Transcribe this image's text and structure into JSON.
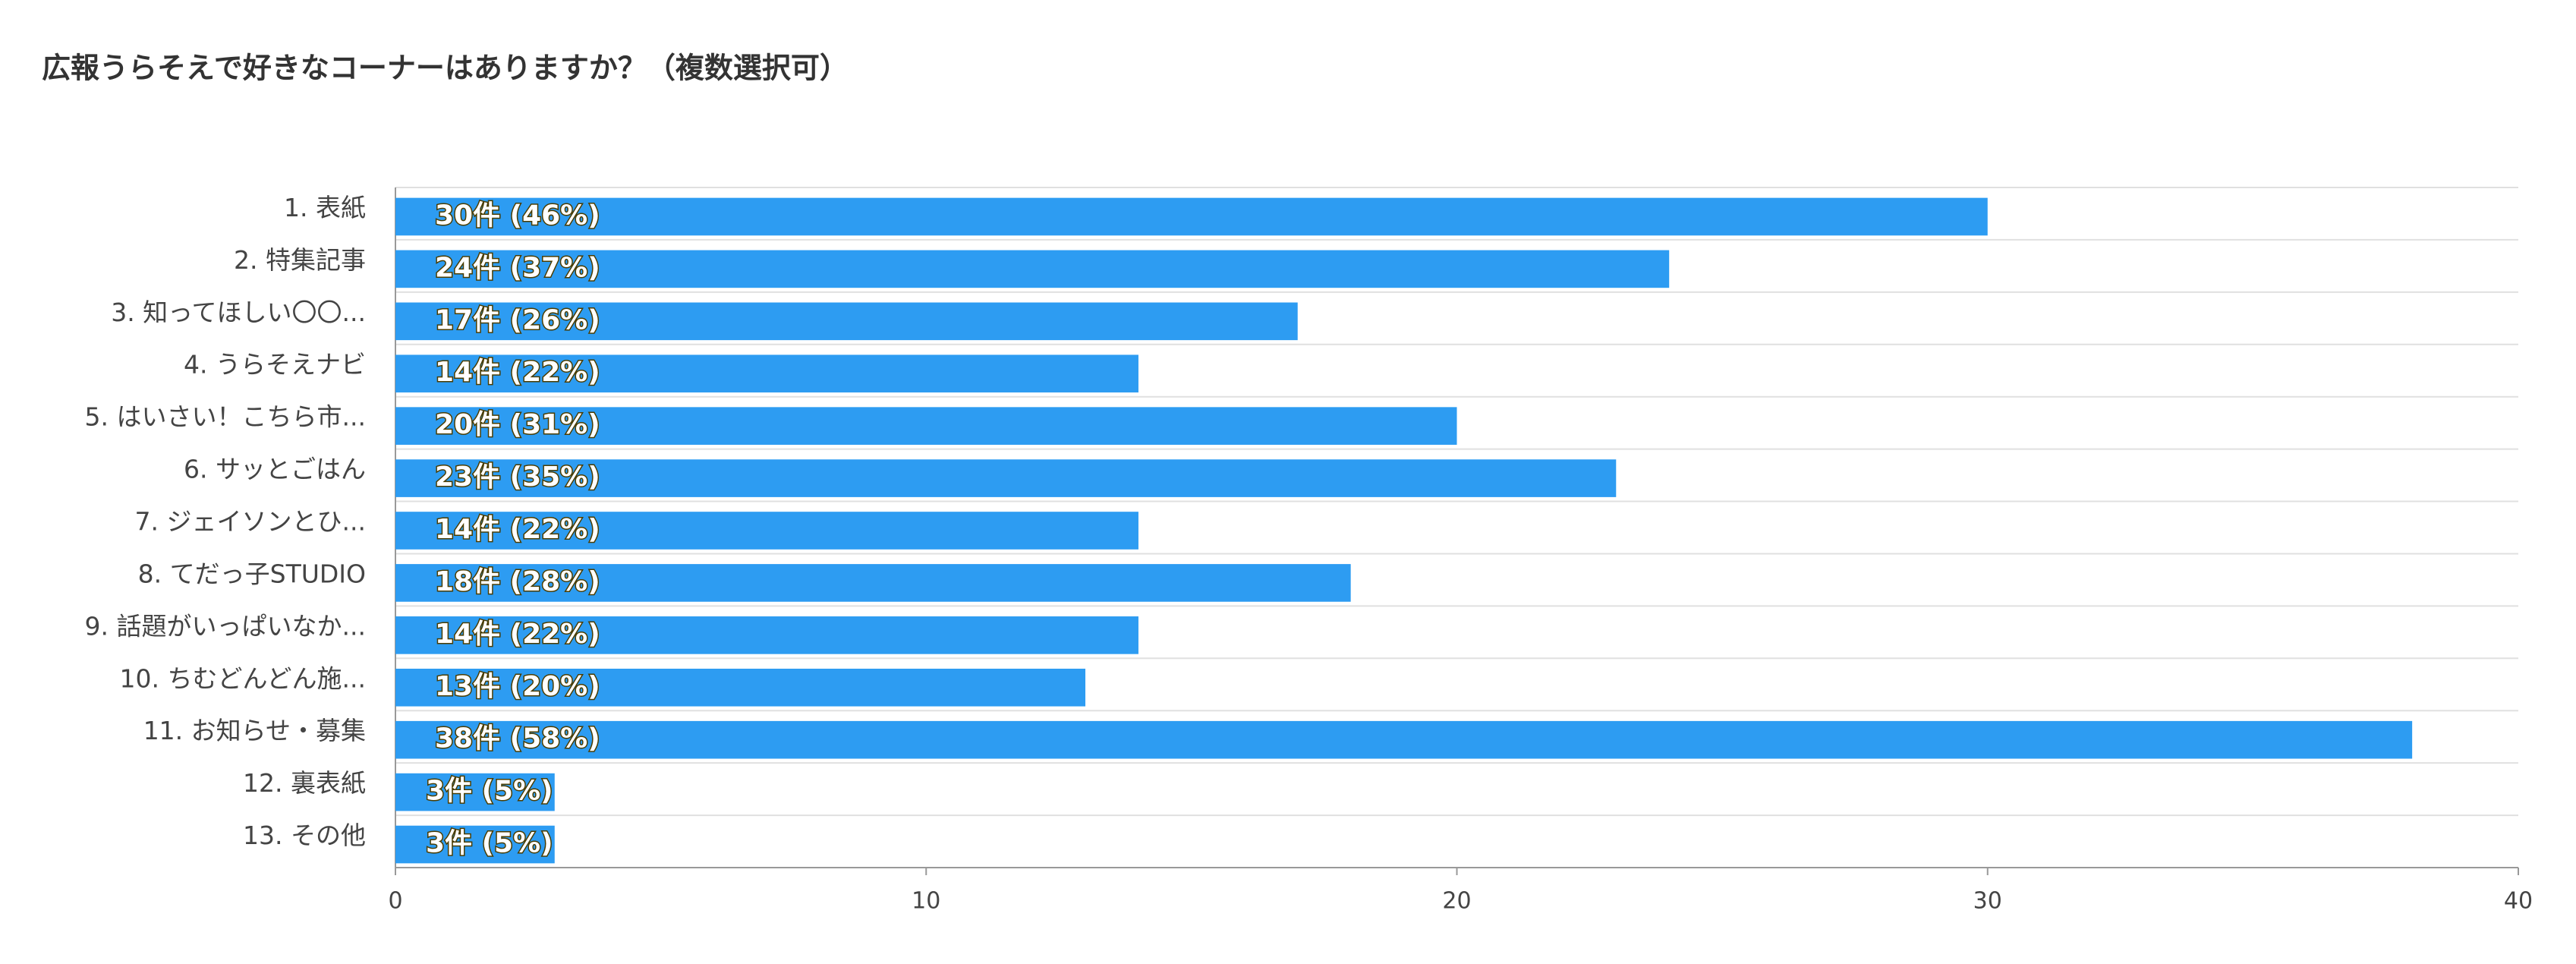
{
  "chart_data": {
    "type": "bar",
    "orientation": "horizontal",
    "title": "広報うらそえで好きなコーナーはありますか？（複数選択可）",
    "categories": [
      "1. 表紙",
      "2. 特集記事",
      "3. 知ってほしい〇〇...",
      "4. うらそえナビ",
      "5. はいさい！こちら市...",
      "6. サッとごはん",
      "7. ジェイソンとひ...",
      "8. てだっ子STUDIO",
      "9. 話題がいっぱいなか...",
      "10. ちむどんどん施...",
      "11. お知らせ・募集",
      "12. 裏表紙",
      "13. その他"
    ],
    "values": [
      30,
      24,
      17,
      14,
      20,
      23,
      14,
      18,
      14,
      13,
      38,
      3,
      3
    ],
    "value_labels": [
      "30件 (46%)",
      "24件 (37%)",
      "17件 (26%)",
      "14件 (22%)",
      "20件 (31%)",
      "23件 (35%)",
      "14件 (22%)",
      "18件 (28%)",
      "14件 (22%)",
      "13件 (20%)",
      "38件 (58%)",
      "3件 (5%)",
      "3件 (5%)"
    ],
    "color": "#2d9cf2",
    "xlim": [
      0,
      40
    ],
    "xticks": [
      0,
      10,
      20,
      30,
      40
    ]
  }
}
